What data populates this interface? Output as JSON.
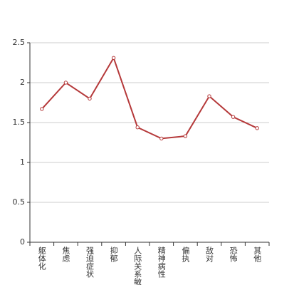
{
  "chart_data": {
    "type": "line",
    "categories": [
      "躯体化",
      "焦虑",
      "强迫症状",
      "抑郁",
      "人际关系敏感",
      "精神病性",
      "偏执",
      "敌对",
      "恐怖",
      "其他"
    ],
    "series": [
      {
        "color": "#b5393a",
        "values": [
          1.67,
          2.0,
          1.8,
          2.31,
          1.44,
          1.3,
          1.33,
          1.83,
          1.57,
          1.43
        ]
      }
    ],
    "ylim": [
      0,
      2.5
    ],
    "yticks": [
      0,
      0.5,
      1,
      1.5,
      2,
      2.5
    ],
    "grid": true
  }
}
